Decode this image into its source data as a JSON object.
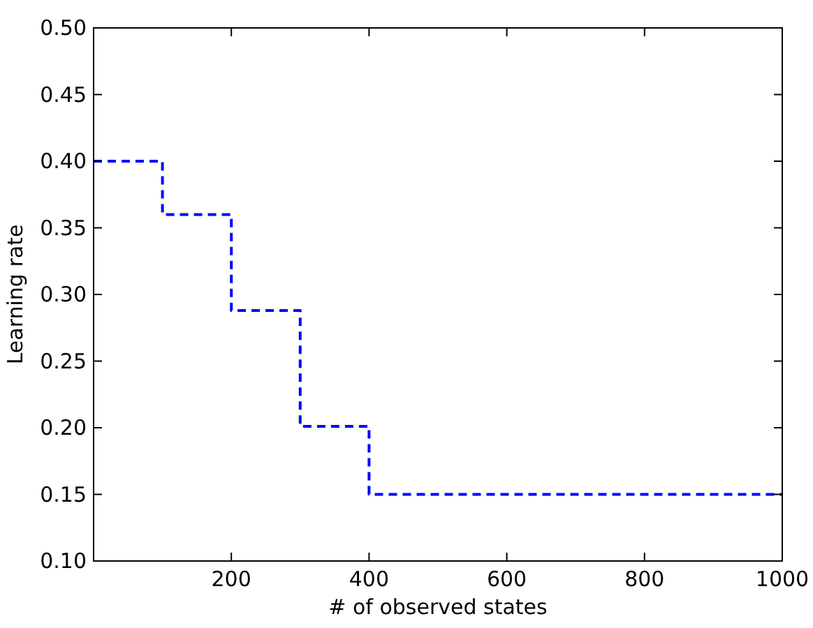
{
  "chart_data": {
    "type": "step",
    "xlabel": "# of observed states",
    "ylabel": "Learning rate",
    "x": [
      0,
      100,
      200,
      300,
      400,
      1000
    ],
    "series": [
      {
        "color": "#0000ff",
        "values": [
          0.4,
          0.36,
          0.288,
          0.201,
          0.15,
          0.15
        ]
      }
    ],
    "xlim": [
      0,
      1000
    ],
    "xticks": [
      200,
      400,
      600,
      800,
      1000
    ],
    "ylim": [
      0.1,
      0.5
    ],
    "yticks": [
      {
        "value": 0.1,
        "label": "0.10"
      },
      {
        "value": 0.15,
        "label": "0.15"
      },
      {
        "value": 0.2,
        "label": "0.20"
      },
      {
        "value": 0.25,
        "label": "0.25"
      },
      {
        "value": 0.3,
        "label": "0.30"
      },
      {
        "value": 0.35,
        "label": "0.35"
      },
      {
        "value": 0.4,
        "label": "0.40"
      },
      {
        "value": 0.45,
        "label": "0.45"
      },
      {
        "value": 0.5,
        "label": "0.50"
      }
    ],
    "grid": false,
    "line_style": "dashed",
    "marker": "none"
  }
}
